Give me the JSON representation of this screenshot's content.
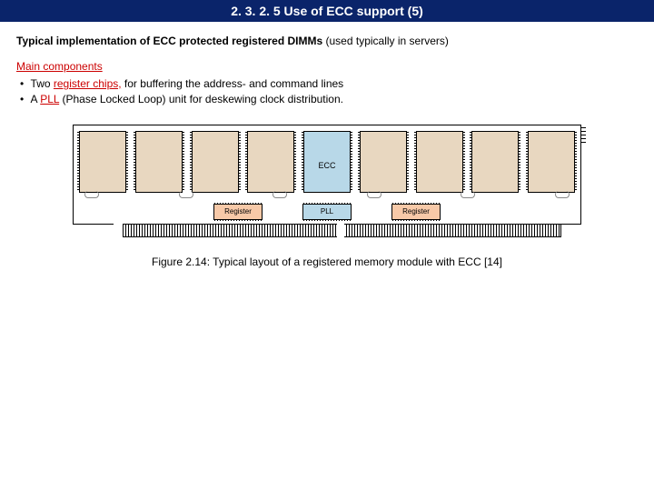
{
  "colors": {
    "title_bg": "#0a246a",
    "accent": "#cc0000",
    "chip": "#e8d7c0",
    "ecc_chip": "#b8d8e8",
    "register_chip": "#f7c9a8",
    "pll_chip": "#b8d8e8"
  },
  "title": "2. 3. 2. 5 Use of ECC support (5)",
  "subtitle": {
    "bold": "Typical implementation of ECC protected registered DIMMs",
    "rest": " (used typically in servers)"
  },
  "components_heading": "Main components",
  "bullets": [
    {
      "pre": "Two ",
      "kw": "register chips,",
      "post": " for buffering the address- and command lines"
    },
    {
      "pre": "A ",
      "kw": "PLL",
      "post": " (Phase Locked Loop) unit for deskewing clock distribution."
    }
  ],
  "dimm": {
    "chip_count": 9,
    "ecc_index": 4,
    "ecc_label": "ECC",
    "register_label": "Register",
    "pll_label": "PLL",
    "notch_count": 6
  },
  "caption": "Figure 2.14: Typical layout of a registered memory module with ECC [14]"
}
